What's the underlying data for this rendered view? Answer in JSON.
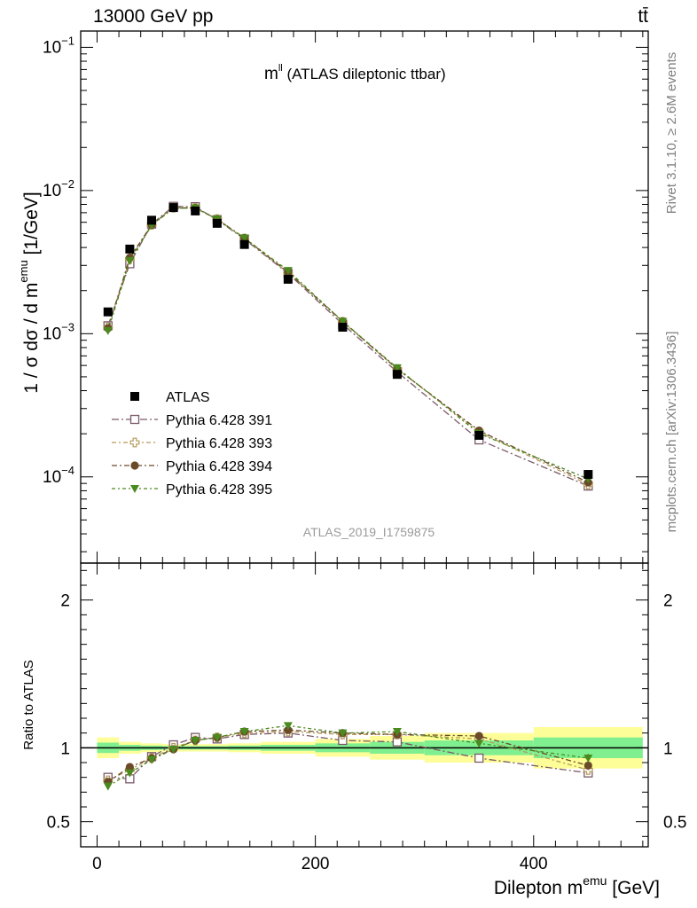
{
  "header": {
    "energy_label": "13000 GeV pp",
    "process_label": "tt̄"
  },
  "side_labels": {
    "rivet": "Rivet 3.1.10, ≥ 2.6M events",
    "mcplots": "mcplots.cern.ch [arXiv:1306.3436]"
  },
  "chart_data": {
    "type": "scatter",
    "title_main": "m",
    "title_sup": "ll",
    "title_rest": " (ATLAS dileptonic ttbar)",
    "watermark": "ATLAS_2019_I1759875",
    "ylabel": "1 / σ  dσ / d m",
    "ylabel_sup": "emu",
    "ylabel_unit": " [1/GeV]",
    "ratio_ylabel": "Ratio to ATLAS",
    "xlabel": "Dilepton m",
    "xlabel_sup": "emu",
    "xlabel_unit": " [GeV]",
    "xlim": [
      -15,
      505
    ],
    "ylim_main": [
      2.5e-05,
      0.13
    ],
    "y_scale_main": "log",
    "ylim_ratio": [
      0.33,
      2.25
    ],
    "x_ticks": [
      "0",
      "200",
      "400"
    ],
    "main_y_ticks": [
      {
        "exp": "−1"
      },
      {
        "exp": "−2"
      },
      {
        "exp": "−3"
      },
      {
        "exp": "−4"
      }
    ],
    "ratio_y_ticks": [
      "2",
      "1",
      "0.5"
    ],
    "legend_placement": "lower-left",
    "x": [
      10,
      30,
      50,
      70,
      90,
      110,
      135,
      175,
      225,
      275,
      350,
      450
    ],
    "bin_edges": [
      0,
      20,
      40,
      60,
      80,
      100,
      120,
      150,
      200,
      250,
      300,
      400,
      500
    ],
    "data": {
      "name": "ATLAS",
      "values": [
        0.00142,
        0.0039,
        0.0062,
        0.0076,
        0.0072,
        0.0059,
        0.0042,
        0.0024,
        0.00111,
        0.00052,
        0.000195,
        0.000104
      ],
      "band_inner": [
        0.035,
        0.02,
        0.015,
        0.012,
        0.012,
        0.012,
        0.015,
        0.02,
        0.03,
        0.04,
        0.05,
        0.07
      ],
      "band_outer": [
        0.07,
        0.04,
        0.03,
        0.025,
        0.025,
        0.025,
        0.03,
        0.04,
        0.06,
        0.08,
        0.1,
        0.14
      ],
      "color": "#000000"
    },
    "series": [
      {
        "name": "Pythia 6.428 391",
        "marker": "open-square",
        "color": "#7a5a6a",
        "ratio": [
          0.8,
          0.79,
          0.94,
          1.02,
          1.07,
          1.06,
          1.09,
          1.1,
          1.05,
          1.04,
          0.93,
          0.83
        ]
      },
      {
        "name": "Pythia 6.428 393",
        "marker": "open-cross",
        "color": "#b59a5a",
        "ratio": [
          0.78,
          0.85,
          0.93,
          1.0,
          1.05,
          1.07,
          1.1,
          1.11,
          1.09,
          1.09,
          1.06,
          0.85
        ]
      },
      {
        "name": "Pythia 6.428 394",
        "marker": "filled-circle",
        "color": "#6b4a2a",
        "ratio": [
          0.77,
          0.87,
          0.93,
          0.99,
          1.05,
          1.07,
          1.11,
          1.12,
          1.1,
          1.09,
          1.08,
          0.88
        ]
      },
      {
        "name": "Pythia 6.428 395",
        "marker": "filled-triangle-down",
        "color": "#4a8a1e",
        "ratio": [
          0.74,
          0.83,
          0.92,
          0.99,
          1.05,
          1.07,
          1.11,
          1.15,
          1.1,
          1.11,
          1.03,
          0.93
        ]
      }
    ],
    "colors": {
      "band_inner": "#80ef90",
      "band_outer": "#fefe98",
      "frame": "#000000",
      "watermark": "#9b9b9b",
      "side_text": "#808080"
    }
  }
}
